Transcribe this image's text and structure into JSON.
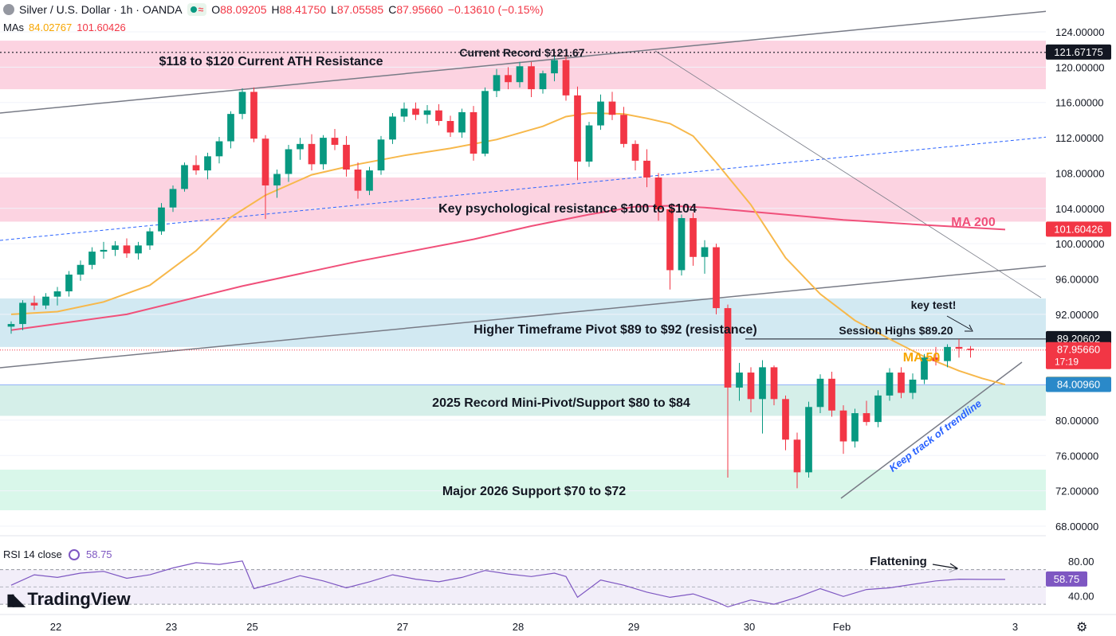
{
  "header": {
    "title": "Silver / U.S. Dollar · 1h · OANDA",
    "o_label": "O",
    "o_value": "88.09205",
    "h_label": "H",
    "h_value": "88.41750",
    "l_label": "L",
    "l_value": "87.05585",
    "c_label": "C",
    "c_value": "87.95660",
    "change": "−0.13610 (−0.15%)"
  },
  "mas_legend": {
    "label": "MAs",
    "ma50_value": "84.02767",
    "ma200_value": "101.60426"
  },
  "rsi_legend": {
    "label": "RSI 14 close",
    "value": "58.75"
  },
  "brand": "TradingView",
  "colors": {
    "up": "#089981",
    "down": "#f23645",
    "ma50": "#f7b84b",
    "ma200": "#f0507a",
    "zone_pink": "#fcd3e1",
    "zone_blue": "#d2e9f2",
    "zone_teal": "#d5efe9",
    "zone_green": "#d9f7ea"
  },
  "chart_data": {
    "type": "candlestick",
    "symbol": "Silver / U.S. Dollar",
    "timeframe": "1h",
    "ylim": [
      66,
      126
    ],
    "y_ticks": [
      "124.00000",
      "120.00000",
      "116.00000",
      "112.00000",
      "108.00000",
      "104.00000",
      "100.00000",
      "96.00000",
      "92.00000",
      "80.00000",
      "76.00000",
      "72.00000",
      "68.00000"
    ],
    "x_ticks": [
      {
        "label": "22",
        "i": 0
      },
      {
        "label": "23",
        "i": 10
      },
      {
        "label": "25",
        "i": 17
      },
      {
        "label": "27",
        "i": 30
      },
      {
        "label": "28",
        "i": 40
      },
      {
        "label": "29",
        "i": 50
      },
      {
        "label": "30",
        "i": 60
      },
      {
        "label": "Feb",
        "i": 68
      },
      {
        "label": "3",
        "i": 83
      }
    ],
    "zones": [
      {
        "low": 117.5,
        "high": 123.0,
        "kind": "pink",
        "label": "$118 to $120 Current ATH Resistance"
      },
      {
        "low": 102.5,
        "high": 107.5,
        "kind": "pink",
        "label": "Key psychological resistance $100 to $104"
      },
      {
        "low": 88.3,
        "high": 93.8,
        "kind": "blue",
        "label": "Higher Timeframe Pivot $89 to $92 (resistance)"
      },
      {
        "low": 80.5,
        "high": 84.0,
        "kind": "teal",
        "label": "2025 Record Mini-Pivot/Support $80 to $84"
      },
      {
        "low": 69.8,
        "high": 74.4,
        "kind": "green",
        "label": "Major 2026 Support $70 to $72"
      }
    ],
    "annotations": [
      {
        "text": "Current Record $121.67",
        "value": 121.67175
      },
      {
        "text": "Session Highs $89.20",
        "value": 89.20602
      },
      {
        "text": "key test!"
      },
      {
        "text": "MA 50"
      },
      {
        "text": "MA 200"
      },
      {
        "text": "Keep track of trendline"
      },
      {
        "text": "Flattening"
      }
    ],
    "price_labels": [
      {
        "text": "121.67175",
        "value": 121.67175,
        "kind": "dark"
      },
      {
        "text": "101.60426",
        "value": 101.60426,
        "kind": "red"
      },
      {
        "text": "89.20602",
        "value": 89.20602,
        "kind": "dark"
      },
      {
        "text": "87.95660",
        "value": 87.9566,
        "kind": "red",
        "sub": "17:19"
      },
      {
        "text": "84.02767",
        "value": 84.02767,
        "kind": "orange"
      },
      {
        "text": "84.00960",
        "value": 84.0096,
        "kind": "blue"
      }
    ],
    "candles": [
      [
        90.6,
        91.2,
        89.8,
        90.9
      ],
      [
        90.9,
        93.6,
        90.2,
        93.3
      ],
      [
        93.3,
        94.1,
        92.5,
        93.0
      ],
      [
        93.0,
        94.4,
        92.6,
        94.0
      ],
      [
        94.0,
        95.1,
        93.0,
        94.6
      ],
      [
        94.6,
        96.9,
        94.0,
        96.5
      ],
      [
        96.5,
        98.1,
        95.8,
        97.6
      ],
      [
        97.6,
        99.6,
        97.1,
        99.1
      ],
      [
        99.1,
        100.2,
        98.3,
        99.3
      ],
      [
        99.3,
        100.3,
        98.6,
        99.8
      ],
      [
        99.8,
        100.6,
        98.4,
        98.9
      ],
      [
        98.9,
        100.2,
        98.2,
        99.8
      ],
      [
        99.8,
        101.8,
        99.3,
        101.4
      ],
      [
        101.4,
        104.6,
        101.0,
        104.1
      ],
      [
        104.1,
        106.6,
        103.6,
        106.2
      ],
      [
        106.2,
        109.2,
        105.9,
        108.9
      ],
      [
        108.9,
        110.0,
        107.8,
        108.3
      ],
      [
        108.3,
        110.3,
        107.3,
        109.9
      ],
      [
        109.9,
        112.1,
        109.1,
        111.6
      ],
      [
        111.6,
        115.0,
        110.8,
        114.7
      ],
      [
        114.7,
        117.6,
        114.1,
        117.2
      ],
      [
        117.2,
        117.7,
        111.5,
        111.9
      ],
      [
        111.9,
        112.3,
        102.8,
        106.6
      ],
      [
        106.6,
        108.4,
        105.2,
        107.9
      ],
      [
        107.9,
        111.2,
        107.0,
        110.7
      ],
      [
        110.7,
        112.0,
        109.5,
        111.3
      ],
      [
        111.3,
        112.4,
        108.3,
        109.0
      ],
      [
        109.0,
        112.3,
        108.4,
        112.0
      ],
      [
        112.0,
        113.0,
        110.6,
        111.2
      ],
      [
        111.2,
        112.2,
        107.6,
        108.4
      ],
      [
        108.4,
        109.2,
        105.1,
        106.0
      ],
      [
        106.0,
        108.7,
        105.5,
        108.3
      ],
      [
        108.3,
        112.2,
        107.8,
        111.8
      ],
      [
        111.8,
        114.8,
        111.3,
        114.4
      ],
      [
        114.4,
        116.0,
        113.8,
        115.3
      ],
      [
        115.3,
        116.0,
        114.0,
        114.6
      ],
      [
        114.6,
        115.7,
        113.6,
        115.1
      ],
      [
        115.1,
        115.8,
        113.4,
        113.9
      ],
      [
        113.9,
        114.5,
        112.1,
        112.6
      ],
      [
        112.6,
        115.3,
        112.0,
        114.9
      ],
      [
        114.9,
        115.6,
        109.4,
        110.2
      ],
      [
        110.2,
        117.7,
        109.9,
        117.3
      ],
      [
        117.3,
        119.8,
        116.6,
        119.1
      ],
      [
        119.1,
        120.0,
        117.5,
        118.3
      ],
      [
        118.3,
        120.6,
        117.7,
        120.1
      ],
      [
        120.1,
        120.6,
        116.6,
        117.5
      ],
      [
        117.5,
        119.6,
        117.0,
        119.3
      ],
      [
        119.3,
        121.2,
        118.4,
        120.8
      ],
      [
        120.8,
        121.7,
        116.2,
        116.8
      ],
      [
        116.8,
        117.8,
        107.2,
        109.3
      ],
      [
        109.3,
        113.8,
        108.7,
        113.4
      ],
      [
        113.4,
        116.9,
        112.9,
        116.1
      ],
      [
        116.1,
        117.2,
        114.0,
        114.6
      ],
      [
        114.6,
        115.5,
        110.9,
        111.3
      ],
      [
        111.3,
        111.7,
        108.3,
        109.4
      ],
      [
        109.4,
        110.7,
        106.4,
        107.5
      ],
      [
        107.5,
        108.0,
        102.6,
        103.9
      ],
      [
        103.9,
        104.4,
        94.8,
        97.0
      ],
      [
        97.0,
        103.3,
        96.4,
        102.9
      ],
      [
        102.9,
        103.5,
        97.5,
        98.5
      ],
      [
        98.5,
        100.4,
        96.6,
        99.6
      ],
      [
        99.6,
        100.0,
        92.0,
        92.7
      ],
      [
        92.7,
        93.1,
        73.5,
        83.7
      ],
      [
        83.7,
        86.5,
        82.2,
        85.4
      ],
      [
        85.4,
        86.0,
        80.9,
        82.4
      ],
      [
        82.4,
        86.8,
        78.5,
        86.0
      ],
      [
        86.0,
        86.2,
        81.7,
        82.4
      ],
      [
        82.4,
        82.8,
        76.6,
        77.8
      ],
      [
        77.8,
        78.6,
        72.3,
        74.1
      ],
      [
        74.1,
        82.1,
        73.5,
        81.5
      ],
      [
        81.5,
        85.2,
        80.8,
        84.7
      ],
      [
        84.7,
        85.5,
        80.4,
        81.1
      ],
      [
        81.1,
        81.7,
        76.2,
        77.6
      ],
      [
        77.6,
        81.3,
        76.9,
        80.8
      ],
      [
        80.8,
        82.2,
        79.4,
        79.8
      ],
      [
        79.8,
        83.4,
        79.2,
        82.8
      ],
      [
        82.8,
        85.9,
        82.2,
        85.4
      ],
      [
        85.4,
        86.0,
        82.5,
        83.1
      ],
      [
        83.1,
        85.3,
        82.4,
        84.6
      ],
      [
        84.6,
        87.5,
        84.1,
        87.1
      ],
      [
        87.1,
        88.3,
        86.2,
        86.7
      ],
      [
        86.7,
        88.6,
        86.0,
        88.3
      ],
      [
        88.3,
        89.2,
        87.1,
        88.1
      ],
      [
        88.1,
        88.4,
        87.1,
        87.96
      ]
    ],
    "ma50": [
      [
        0,
        92.0
      ],
      [
        4,
        92.3
      ],
      [
        8,
        93.4
      ],
      [
        12,
        95.3
      ],
      [
        16,
        99.2
      ],
      [
        19,
        103.0
      ],
      [
        22,
        105.5
      ],
      [
        26,
        107.8
      ],
      [
        30,
        109.0
      ],
      [
        34,
        110.0
      ],
      [
        38,
        110.8
      ],
      [
        42,
        111.8
      ],
      [
        46,
        113.3
      ],
      [
        48,
        114.4
      ],
      [
        50,
        114.8
      ],
      [
        53,
        114.7
      ],
      [
        55,
        114.2
      ],
      [
        57,
        113.6
      ],
      [
        59,
        112.2
      ],
      [
        61,
        109.2
      ],
      [
        64,
        104.4
      ],
      [
        67,
        98.4
      ],
      [
        70,
        94.3
      ],
      [
        73,
        91.3
      ],
      [
        76,
        89.2
      ],
      [
        79,
        87.2
      ],
      [
        82,
        85.6
      ],
      [
        84,
        84.75
      ],
      [
        86,
        84.03
      ]
    ],
    "ma200": [
      [
        0,
        90.2
      ],
      [
        10,
        92.0
      ],
      [
        20,
        95.2
      ],
      [
        30,
        98.0
      ],
      [
        40,
        100.5
      ],
      [
        45,
        102.0
      ],
      [
        50,
        103.3
      ],
      [
        54,
        104.2
      ],
      [
        57,
        104.3
      ],
      [
        60,
        104.1
      ],
      [
        66,
        103.4
      ],
      [
        72,
        102.7
      ],
      [
        78,
        102.2
      ],
      [
        86,
        101.6
      ]
    ],
    "rsi": {
      "ylim": [
        20,
        100
      ],
      "ticks": [
        "80.00",
        "40.00"
      ],
      "overbought": 70,
      "oversold": 30,
      "values": [
        [
          0,
          52
        ],
        [
          2,
          64
        ],
        [
          4,
          61
        ],
        [
          6,
          66
        ],
        [
          8,
          68
        ],
        [
          10,
          60
        ],
        [
          12,
          64
        ],
        [
          14,
          72
        ],
        [
          16,
          78
        ],
        [
          18,
          76
        ],
        [
          20,
          80
        ],
        [
          21,
          48
        ],
        [
          23,
          55
        ],
        [
          25,
          63
        ],
        [
          27,
          57
        ],
        [
          29,
          49
        ],
        [
          31,
          56
        ],
        [
          33,
          64
        ],
        [
          35,
          59
        ],
        [
          37,
          56
        ],
        [
          39,
          61
        ],
        [
          41,
          69
        ],
        [
          43,
          65
        ],
        [
          45,
          62
        ],
        [
          47,
          66
        ],
        [
          48,
          62
        ],
        [
          49,
          38
        ],
        [
          51,
          58
        ],
        [
          53,
          52
        ],
        [
          55,
          44
        ],
        [
          57,
          38
        ],
        [
          59,
          42
        ],
        [
          61,
          33
        ],
        [
          62,
          27
        ],
        [
          64,
          35
        ],
        [
          66,
          30
        ],
        [
          68,
          38
        ],
        [
          70,
          48
        ],
        [
          72,
          39
        ],
        [
          74,
          47
        ],
        [
          76,
          49
        ],
        [
          78,
          53
        ],
        [
          80,
          57
        ],
        [
          82,
          59
        ],
        [
          84,
          58.75
        ],
        [
          86,
          58.75
        ]
      ]
    }
  }
}
